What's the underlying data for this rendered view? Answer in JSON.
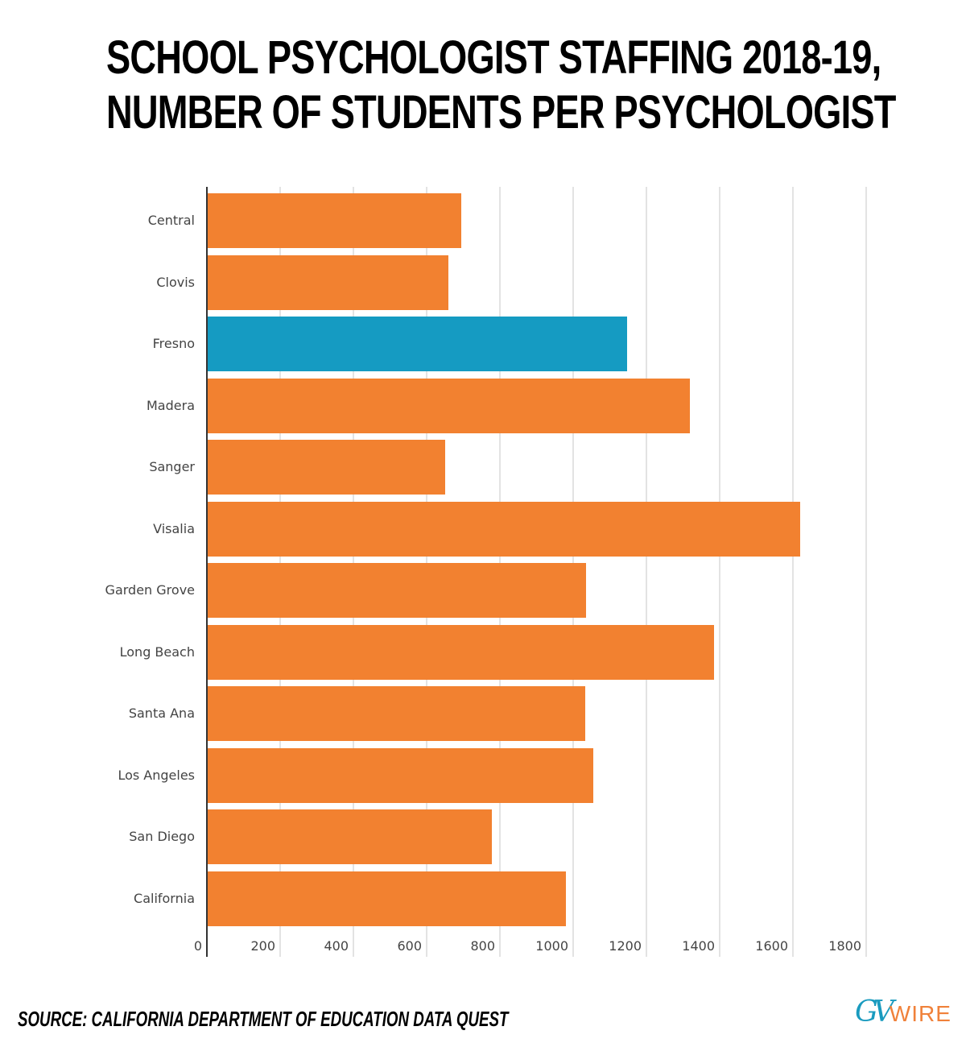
{
  "header": {
    "title_line1": "SCHOOL PSYCHOLOGIST STAFFING 2018-19,",
    "title_line2": "NUMBER OF STUDENTS PER PSYCHOLOGIST"
  },
  "footer": {
    "source": "SOURCE: CALIFORNIA DEPARTMENT OF EDUCATION DATA QUEST",
    "logo_gv": "GV",
    "logo_wire": "WIRE"
  },
  "colors": {
    "default_bar": "#f28130",
    "highlight_bar": "#159bc2",
    "logo_teal": "#1a9bbf",
    "logo_orange": "#f0813a"
  },
  "chart_data": {
    "type": "bar",
    "orientation": "horizontal",
    "title": "School Psychologist Staffing 2018-19, Number of Students per Psychologist",
    "xlabel": "",
    "ylabel": "",
    "xlim": [
      0,
      1800
    ],
    "x_ticks": [
      "0",
      "200",
      "400",
      "600",
      "800",
      "1000",
      "1200",
      "1400",
      "1600",
      "1800"
    ],
    "grid": true,
    "legend": "none",
    "categories": [
      "Central",
      "Clovis",
      "Fresno",
      "Madera",
      "Sanger",
      "Visalia",
      "Garden Grove",
      "Long Beach",
      "Santa Ana",
      "Los Angeles",
      "San Diego",
      "California"
    ],
    "values": [
      692,
      657,
      1145,
      1316,
      648,
      1617,
      1033,
      1382,
      1031,
      1053,
      776,
      978
    ],
    "highlighted": [
      "Fresno"
    ],
    "annotations": [
      "Source: California Department of Education Data Quest"
    ]
  }
}
